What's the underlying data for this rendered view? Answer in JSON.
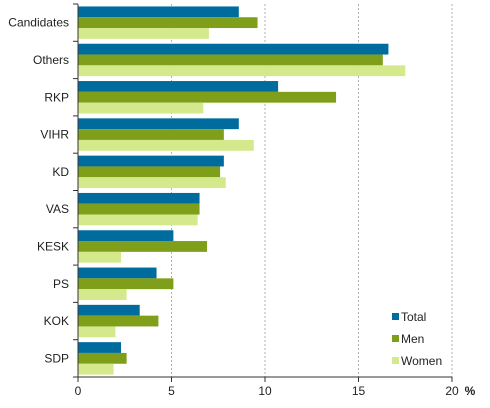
{
  "chart_data": {
    "type": "bar",
    "orientation": "horizontal",
    "categories": [
      "Candidates",
      "Others",
      "RKP",
      "VIHR",
      "KD",
      "VAS",
      "KESK",
      "PS",
      "KOK",
      "SDP"
    ],
    "series": [
      {
        "name": "Total",
        "color": "#006c9e",
        "values": [
          8.6,
          16.6,
          10.7,
          8.6,
          7.8,
          6.5,
          5.1,
          4.2,
          3.3,
          2.3
        ]
      },
      {
        "name": "Men",
        "color": "#7f9e19",
        "values": [
          9.6,
          16.3,
          13.8,
          7.8,
          7.6,
          6.5,
          6.9,
          5.1,
          4.3,
          2.6
        ]
      },
      {
        "name": "Women",
        "color": "#d4e88c",
        "values": [
          7.0,
          17.5,
          6.7,
          9.4,
          7.9,
          6.4,
          2.3,
          2.6,
          2.0,
          1.9
        ]
      }
    ],
    "xlim": [
      0,
      20
    ],
    "xticks": [
      "0",
      "5",
      "10",
      "15",
      "20"
    ],
    "xlabel": "%",
    "grid": "vertical dashed",
    "legend_position": "bottom-right",
    "title": "",
    "ylabel": ""
  }
}
